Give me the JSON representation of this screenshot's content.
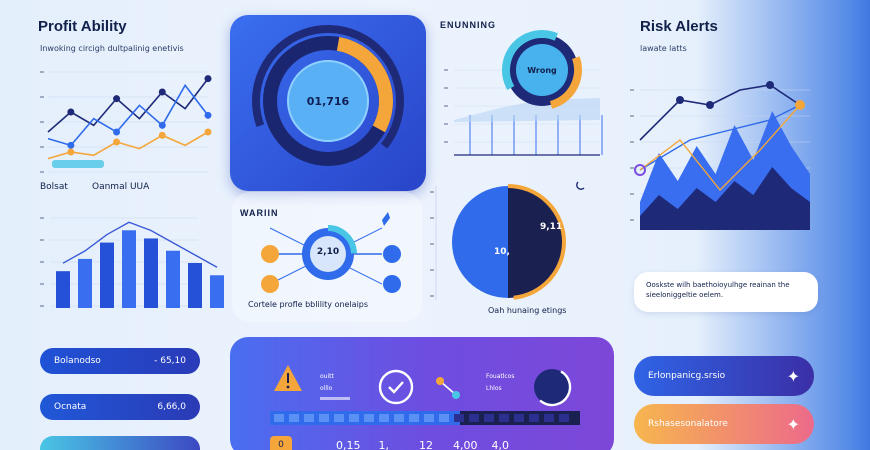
{
  "profit": {
    "title": "Profit Ability",
    "subtitle": "Inwoking circigh dultpalinig enetivis",
    "legend_left": "Bolsat",
    "legend_right": "Oanmal UUA"
  },
  "donut_card": {
    "value": "01,716"
  },
  "forecast": {
    "title": "ENUNNING",
    "donut_label": "Wrong"
  },
  "warning": {
    "title": "WARIIN",
    "center_value": "2,10",
    "caption": "Cortele profle bblility onelaips"
  },
  "pie": {
    "left_value": "10,",
    "right_value": "9,11",
    "caption": "Oah hunaing etings"
  },
  "risk": {
    "title": "Risk Alerts",
    "subtitle": "lawate latts",
    "note": "Ooskste wilh baethoioyulhge reainan the sieeloniggeltie oelem."
  },
  "left_pills": [
    {
      "label": "Bolanodso",
      "value": "- 65,10",
      "color_from": "#1f52d6",
      "color_to": "#2a3bb8"
    },
    {
      "label": "Ocnata",
      "value": "6,66,0",
      "color_from": "#2058d8",
      "color_to": "#2b3ab5"
    }
  ],
  "right_pills": [
    {
      "label": "Erlonpanicg.srsio",
      "color_from": "#2f64e6",
      "color_to": "#3b2fa6"
    },
    {
      "label": "Rshasesonalatore",
      "color_from": "#f7b64e",
      "color_to": "#ec6a8a"
    }
  ],
  "status_panel": {
    "label1a": "ouitt",
    "label1b": "olllo",
    "label2a": "Fouatlcos",
    "label2b": "Lhlos",
    "bottom_values": [
      "0",
      "0,15",
      "1,",
      "12",
      "4,00",
      "4,0"
    ]
  },
  "colors": {
    "primary_blue": "#2f6bea",
    "deep_indigo": "#1e2a78",
    "orange": "#f5a63a",
    "cyan": "#49c6e5",
    "purple_panel": "#6d4ee0"
  },
  "icons": [
    "warning-icon",
    "check-circle-icon",
    "share-node-icon",
    "sparkle-icon",
    "moon-chart-icon"
  ],
  "chart_data": [
    {
      "type": "line",
      "x": [
        1,
        2,
        3,
        4,
        5,
        6,
        7,
        8
      ],
      "series": [
        {
          "values": [
            60,
            90,
            70,
            110,
            80,
            120,
            95,
            140
          ]
        },
        {
          "values": [
            50,
            40,
            80,
            60,
            100,
            70,
            130,
            85
          ]
        },
        {
          "values": [
            20,
            30,
            25,
            45,
            35,
            55,
            40,
            60
          ]
        }
      ]
    },
    {
      "type": "bar",
      "values": [
        45,
        60,
        80,
        95,
        85,
        70,
        55,
        40
      ]
    },
    {
      "type": "area",
      "x": [
        1,
        2,
        3,
        4,
        5,
        6,
        7,
        8,
        9,
        10
      ],
      "series": [
        {
          "values": [
            20,
            55,
            35,
            60,
            40,
            75,
            50,
            85,
            60,
            40
          ]
        },
        {
          "values": [
            10,
            25,
            15,
            30,
            20,
            35,
            25,
            45,
            30,
            20
          ]
        }
      ]
    },
    {
      "type": "pie",
      "values": [
        48,
        52
      ]
    }
  ]
}
